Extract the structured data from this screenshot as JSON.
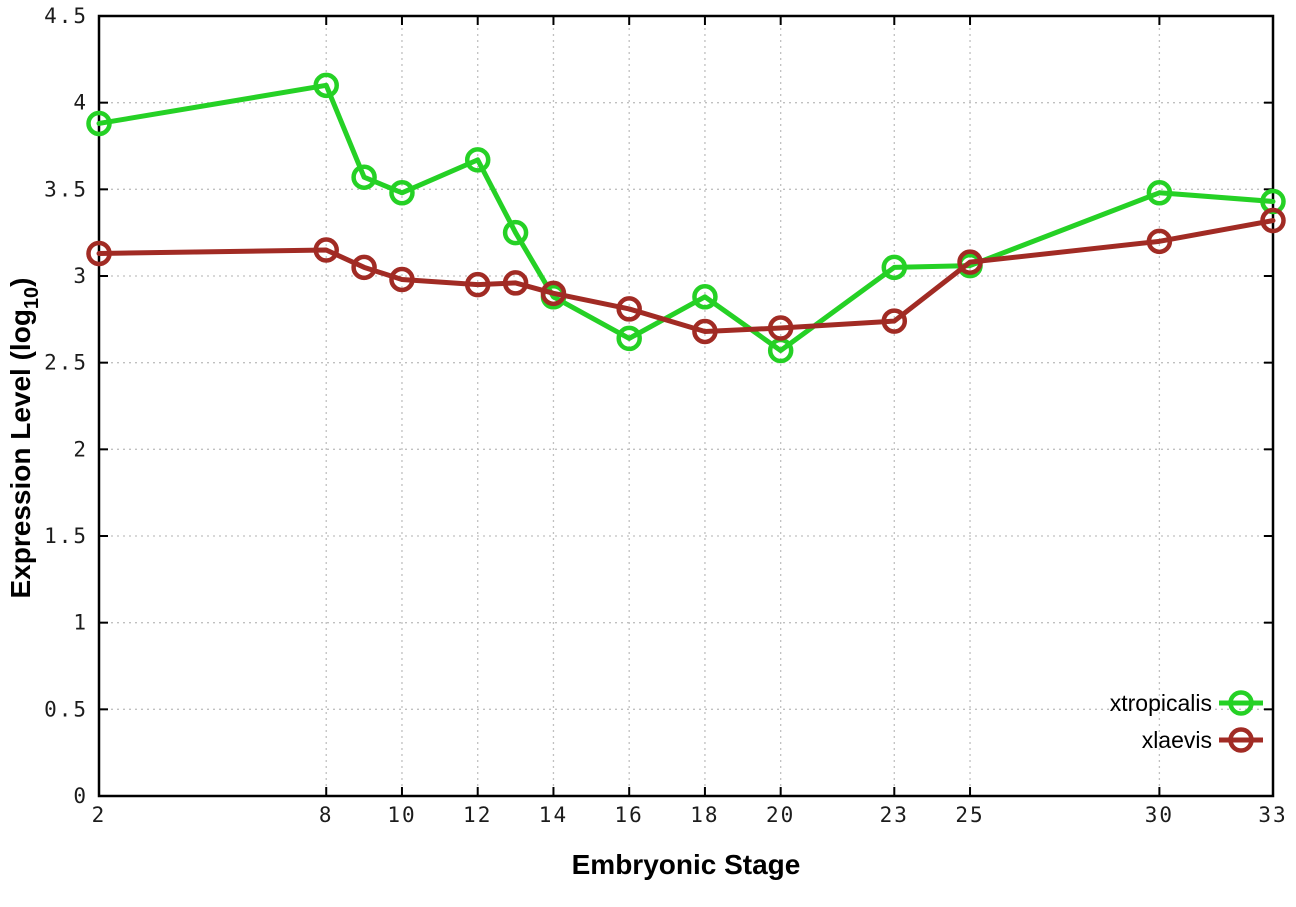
{
  "chart_data": {
    "type": "line",
    "title": "",
    "xlabel": "Embryonic Stage",
    "ylabel": "Expression Level (log10)",
    "ylabel_parts": {
      "main": "Expression Level (log",
      "sub": "10",
      "end": ")"
    },
    "x": [
      2,
      8,
      9,
      10,
      12,
      13,
      14,
      16,
      18,
      20,
      23,
      25,
      30,
      33
    ],
    "series": [
      {
        "name": "xtropicalis",
        "color": "#25d125",
        "values": [
          3.88,
          4.1,
          3.57,
          3.48,
          3.67,
          3.25,
          2.88,
          2.64,
          2.88,
          2.57,
          3.05,
          3.06,
          3.48,
          3.43
        ]
      },
      {
        "name": "xlaevis",
        "color": "#a12b24",
        "values": [
          3.13,
          3.15,
          3.05,
          2.98,
          2.95,
          2.96,
          2.9,
          2.81,
          2.68,
          2.7,
          2.74,
          3.08,
          3.2,
          3.32
        ]
      }
    ],
    "xlim": [
      2,
      33
    ],
    "ylim": [
      0,
      4.5
    ],
    "xticks": [
      2,
      8,
      10,
      12,
      14,
      16,
      18,
      20,
      23,
      25,
      30,
      33
    ],
    "yticks": [
      0,
      0.5,
      1,
      1.5,
      2,
      2.5,
      3,
      3.5,
      4,
      4.5
    ],
    "grid": true,
    "grid_style": "dotted",
    "grid_color": "#c0c0c0",
    "border_color": "#000000",
    "background": "#ffffff",
    "marker": "open-circle",
    "legend_position": "bottom-right"
  }
}
